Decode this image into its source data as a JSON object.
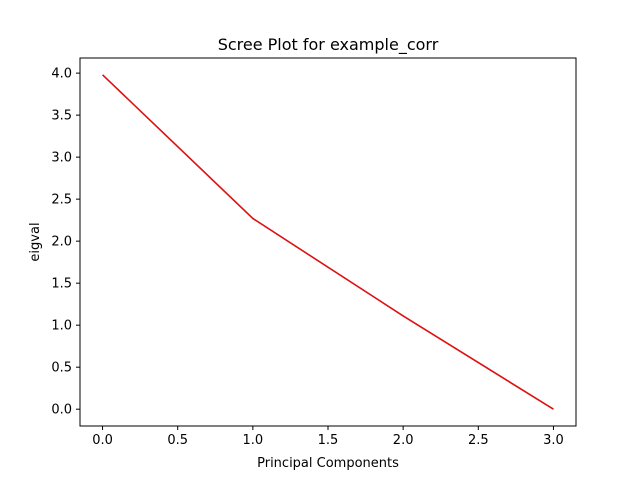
{
  "chart_data": {
    "type": "line",
    "title": "Scree Plot for example_corr",
    "xlabel": "Principal Components",
    "ylabel": "eigval",
    "series": [
      {
        "x": [
          0,
          1,
          2,
          3
        ],
        "values": [
          3.98,
          2.27,
          1.11,
          0.0
        ],
        "color": "#dd1111"
      }
    ],
    "xlim": [
      -0.15,
      3.15
    ],
    "ylim": [
      -0.2,
      4.18
    ],
    "xticks": [
      0.0,
      0.5,
      1.0,
      1.5,
      2.0,
      2.5,
      3.0
    ],
    "xtick_labels": [
      "0.0",
      "0.5",
      "1.0",
      "1.5",
      "2.0",
      "2.5",
      "3.0"
    ],
    "yticks": [
      0.0,
      0.5,
      1.0,
      1.5,
      2.0,
      2.5,
      3.0,
      3.5,
      4.0
    ],
    "ytick_labels": [
      "0.0",
      "0.5",
      "1.0",
      "1.5",
      "2.0",
      "2.5",
      "3.0",
      "3.5",
      "4.0"
    ],
    "grid": false,
    "legend": "none"
  }
}
